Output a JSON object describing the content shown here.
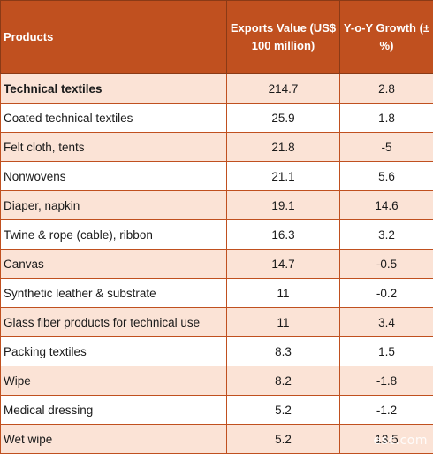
{
  "table": {
    "headers": [
      "Products",
      "Exports Value (US$ 100 million)",
      "Y-o-Y Growth (±%)"
    ],
    "rows": [
      {
        "product": "Technical textiles",
        "value": "214.7",
        "growth": "2.8"
      },
      {
        "product": "Coated technical textiles",
        "value": "25.9",
        "growth": "1.8"
      },
      {
        "product": "Felt cloth, tents",
        "value": "21.8",
        "growth": "-5"
      },
      {
        "product": "Nonwovens",
        "value": "21.1",
        "growth": "5.6"
      },
      {
        "product": "Diaper, napkin",
        "value": "19.1",
        "growth": "14.6"
      },
      {
        "product": "Twine & rope (cable), ribbon",
        "value": "16.3",
        "growth": "3.2"
      },
      {
        "product": "Canvas",
        "value": "14.7",
        "growth": "-0.5"
      },
      {
        "product": "Synthetic leather & substrate",
        "value": "11",
        "growth": "-0.2"
      },
      {
        "product": "Glass fiber products for technical use",
        "value": "11",
        "growth": "3.4"
      },
      {
        "product": "Packing textiles",
        "value": "8.3",
        "growth": "1.5"
      },
      {
        "product": "Wipe",
        "value": "8.2",
        "growth": "-1.8"
      },
      {
        "product": "Medical dressing",
        "value": "5.2",
        "growth": "-1.2"
      },
      {
        "product": "Wet wipe",
        "value": "5.2",
        "growth": "13.5"
      }
    ]
  },
  "watermark": "esc.com",
  "colors": {
    "header_bg": "#c0501f",
    "row_shade": "#fbe3d6",
    "border": "#c0501f"
  }
}
